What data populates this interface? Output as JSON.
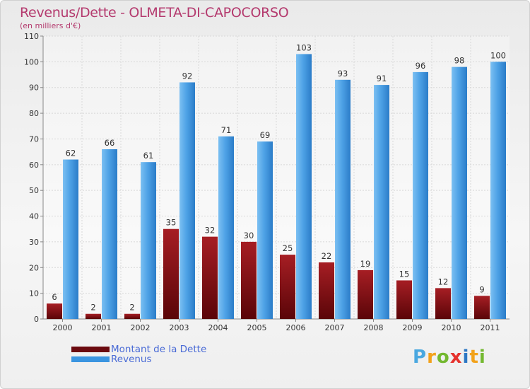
{
  "title": "Revenus/Dette - OLMETA-DI-CAPOCORSO",
  "subtitle": "(en milliers d'€)",
  "logo_text": "Proxiti",
  "colors": {
    "dette": "#6b0a0f",
    "revenus": "#3b95e0",
    "title": "#b43a6e",
    "legend_text": "#4a6bd6"
  },
  "legend": [
    {
      "label": "Montant de la Dette",
      "color": "#6b0a0f",
      "icon": "dark-red-bar-swatch"
    },
    {
      "label": "Revenus",
      "color": "#3b95e0",
      "icon": "blue-bar-swatch"
    }
  ],
  "chart_data": {
    "type": "bar",
    "title": "Revenus/Dette - OLMETA-DI-CAPOCORSO",
    "ylabel": "(en milliers d'€)",
    "xlabel": "",
    "categories": [
      "2000",
      "2001",
      "2002",
      "2003",
      "2004",
      "2005",
      "2006",
      "2007",
      "2008",
      "2009",
      "2010",
      "2011"
    ],
    "series": [
      {
        "name": "Montant de la Dette",
        "values": [
          6,
          2,
          2,
          35,
          32,
          30,
          25,
          22,
          19,
          15,
          12,
          9
        ]
      },
      {
        "name": "Revenus",
        "values": [
          62,
          66,
          61,
          92,
          71,
          69,
          103,
          93,
          91,
          96,
          98,
          100
        ]
      }
    ],
    "ylim": [
      0,
      110
    ],
    "yticks": [
      0,
      10,
      20,
      30,
      40,
      50,
      60,
      70,
      80,
      90,
      100,
      110
    ],
    "grid": true,
    "legend_position": "bottom-left"
  }
}
